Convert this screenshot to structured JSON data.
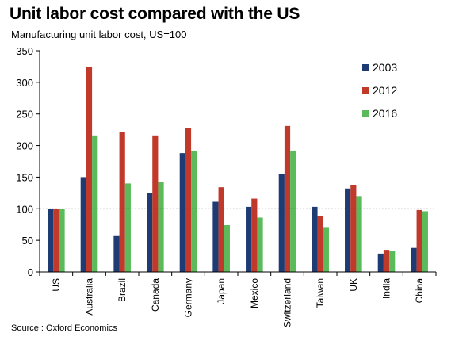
{
  "chart_data": {
    "type": "bar",
    "title": "Unit labor cost compared with the US",
    "subtitle": "Manufacturing unit labor cost, US=100",
    "source": "Source : Oxford Economics",
    "categories": [
      "US",
      "Australia",
      "Brazil",
      "Canada",
      "Germany",
      "Japan",
      "Mexico",
      "Switzerland",
      "Taiwan",
      "UK",
      "India",
      "China"
    ],
    "series": [
      {
        "name": "2003",
        "color": "#1f3b73",
        "values": [
          100,
          150,
          58,
          125,
          188,
          111,
          103,
          155,
          103,
          132,
          29,
          38
        ]
      },
      {
        "name": "2012",
        "color": "#c0392b",
        "values": [
          100,
          324,
          222,
          216,
          228,
          134,
          116,
          231,
          88,
          138,
          35,
          98
        ]
      },
      {
        "name": "2016",
        "color": "#5bbb5b",
        "values": [
          100,
          216,
          140,
          142,
          192,
          74,
          86,
          192,
          71,
          120,
          33,
          96
        ]
      }
    ],
    "ylim": [
      0,
      350
    ],
    "yticks": [
      0,
      50,
      100,
      150,
      200,
      250,
      300,
      350
    ],
    "reference_line": 100,
    "legend_position": "top-right",
    "grid": false
  }
}
